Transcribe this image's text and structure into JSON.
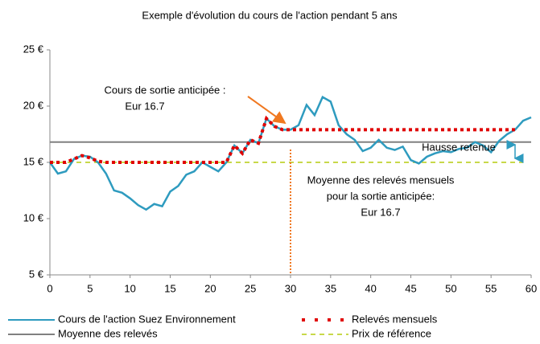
{
  "chart_data": {
    "type": "line",
    "title": "Exemple d'évolution du cours de l'action pendant 5 ans",
    "x": [
      0,
      1,
      2,
      3,
      4,
      5,
      6,
      7,
      8,
      9,
      10,
      11,
      12,
      13,
      14,
      15,
      16,
      17,
      18,
      19,
      20,
      21,
      22,
      23,
      24,
      25,
      26,
      27,
      28,
      29,
      30,
      31,
      32,
      33,
      34,
      35,
      36,
      37,
      38,
      39,
      40,
      41,
      42,
      43,
      44,
      45,
      46,
      47,
      48,
      49,
      50,
      51,
      52,
      53,
      54,
      55,
      56,
      57,
      58,
      59,
      60
    ],
    "series": [
      {
        "name": "Cours de l'action Suez Environnement",
        "color": "#2e9bbf",
        "style": "solid",
        "values": [
          15,
          14,
          14.2,
          15.3,
          15.6,
          15.5,
          15,
          14,
          12.5,
          12.3,
          11.8,
          11.2,
          10.8,
          11.3,
          11.1,
          12.4,
          12.9,
          13.9,
          14.2,
          15,
          14.6,
          14.2,
          15,
          16.5,
          15.8,
          17,
          16.7,
          18.9,
          18.2,
          17.9,
          17.9,
          18.3,
          20.1,
          19.2,
          20.8,
          20.4,
          18.3,
          17.5,
          17,
          16,
          16.3,
          17,
          16.3,
          16.1,
          16.4,
          15.2,
          14.9,
          15.5,
          15.8,
          16,
          15.9,
          16.2,
          16.3,
          16.8,
          16.5,
          15.9,
          16.9,
          17.5,
          17.9,
          18.7,
          19
        ]
      },
      {
        "name": "Relevés mensuels",
        "color": "#e00000",
        "style": "dotted",
        "values": [
          15,
          15,
          15,
          15.3,
          15.6,
          15.4,
          15.1,
          15,
          15,
          15,
          15,
          15,
          15,
          15,
          15,
          15,
          15,
          15,
          15,
          15,
          15,
          15,
          15,
          16.5,
          15.8,
          17,
          16.7,
          18.9,
          18.2,
          17.9,
          17.9,
          17.9,
          17.9,
          17.9,
          17.9,
          17.9,
          17.9,
          17.9,
          17.9,
          17.9,
          17.9,
          17.9,
          17.9,
          17.9,
          17.9,
          17.9,
          17.9,
          17.9,
          17.9,
          17.9,
          17.9,
          17.9,
          17.9,
          17.9,
          17.9,
          17.9,
          17.9,
          17.9,
          17.9,
          null,
          null
        ]
      },
      {
        "name": "Moyenne des relevés",
        "color": "#808080",
        "style": "solid",
        "values": [
          16.8,
          16.8,
          16.8,
          16.8,
          16.8,
          16.8,
          16.8,
          16.8,
          16.8,
          16.8,
          16.8,
          16.8,
          16.8,
          16.8,
          16.8,
          16.8,
          16.8,
          16.8,
          16.8,
          16.8,
          16.8,
          16.8,
          16.8,
          16.8,
          16.8,
          16.8,
          16.8,
          16.8,
          16.8,
          16.8,
          16.8,
          16.8,
          16.8,
          16.8,
          16.8,
          16.8,
          16.8,
          16.8,
          16.8,
          16.8,
          16.8,
          16.8,
          16.8,
          16.8,
          16.8,
          16.8,
          16.8,
          16.8,
          16.8,
          16.8,
          16.8,
          16.8,
          16.8,
          16.8,
          16.8,
          16.8,
          16.8,
          16.8,
          16.8,
          16.8,
          16.8
        ]
      },
      {
        "name": "Prix de référence",
        "color": "#c8d84a",
        "style": "dashed",
        "values": [
          15,
          15,
          15,
          15,
          15,
          15,
          15,
          15,
          15,
          15,
          15,
          15,
          15,
          15,
          15,
          15,
          15,
          15,
          15,
          15,
          15,
          15,
          15,
          15,
          15,
          15,
          15,
          15,
          15,
          15,
          15,
          15,
          15,
          15,
          15,
          15,
          15,
          15,
          15,
          15,
          15,
          15,
          15,
          15,
          15,
          15,
          15,
          15,
          15,
          15,
          15,
          15,
          15,
          15,
          15,
          15,
          15,
          15,
          15,
          15,
          null
        ]
      }
    ],
    "xlim": [
      0,
      60
    ],
    "xticks": [
      0,
      5,
      10,
      15,
      20,
      25,
      30,
      35,
      40,
      45,
      50,
      55,
      60
    ],
    "ylim": [
      5,
      25
    ],
    "yticks": [
      {
        "value": 5,
        "label": "5 €"
      },
      {
        "value": 10,
        "label": "10 €"
      },
      {
        "value": 15,
        "label": "15 €"
      },
      {
        "value": 20,
        "label": "20 €"
      },
      {
        "value": 25,
        "label": "25 €"
      }
    ],
    "annotations": [
      "Cours de sortie anticipée :",
      "Eur 16.7",
      "Moyenne des relevés mensuels",
      "pour la sortie anticipée:",
      "Eur 16.7",
      "Hausse retenue"
    ]
  }
}
